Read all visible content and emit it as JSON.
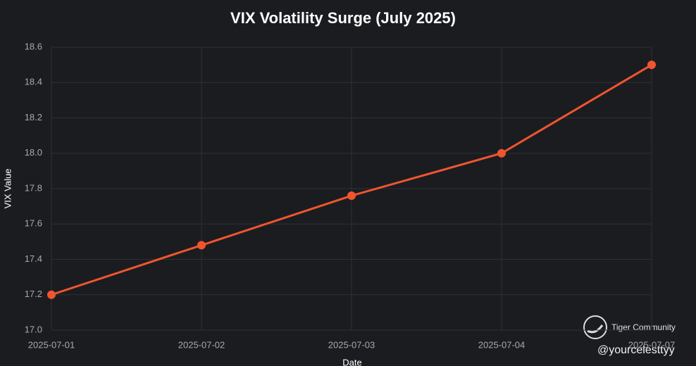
{
  "chart_data": {
    "type": "line",
    "title": "VIX Volatility Surge (July 2025)",
    "xlabel": "Date",
    "ylabel": "VIX Value",
    "categories": [
      "2025-07-01",
      "2025-07-02",
      "2025-07-03",
      "2025-07-04",
      "2025-07-07"
    ],
    "values": [
      17.2,
      17.48,
      17.76,
      18.0,
      18.5
    ],
    "color": "#f0552f",
    "ylim": [
      17.0,
      18.6
    ],
    "yticks": [
      {
        "value": 17.0,
        "label": "17.0"
      },
      17.2,
      17.4,
      17.6,
      17.8,
      {
        "value": 18.0,
        "label": "18.0"
      },
      18.2,
      18.4,
      18.6
    ],
    "grid": true
  },
  "watermark": {
    "brand": "Tiger Community",
    "handle": "@yourcelesttyy"
  }
}
